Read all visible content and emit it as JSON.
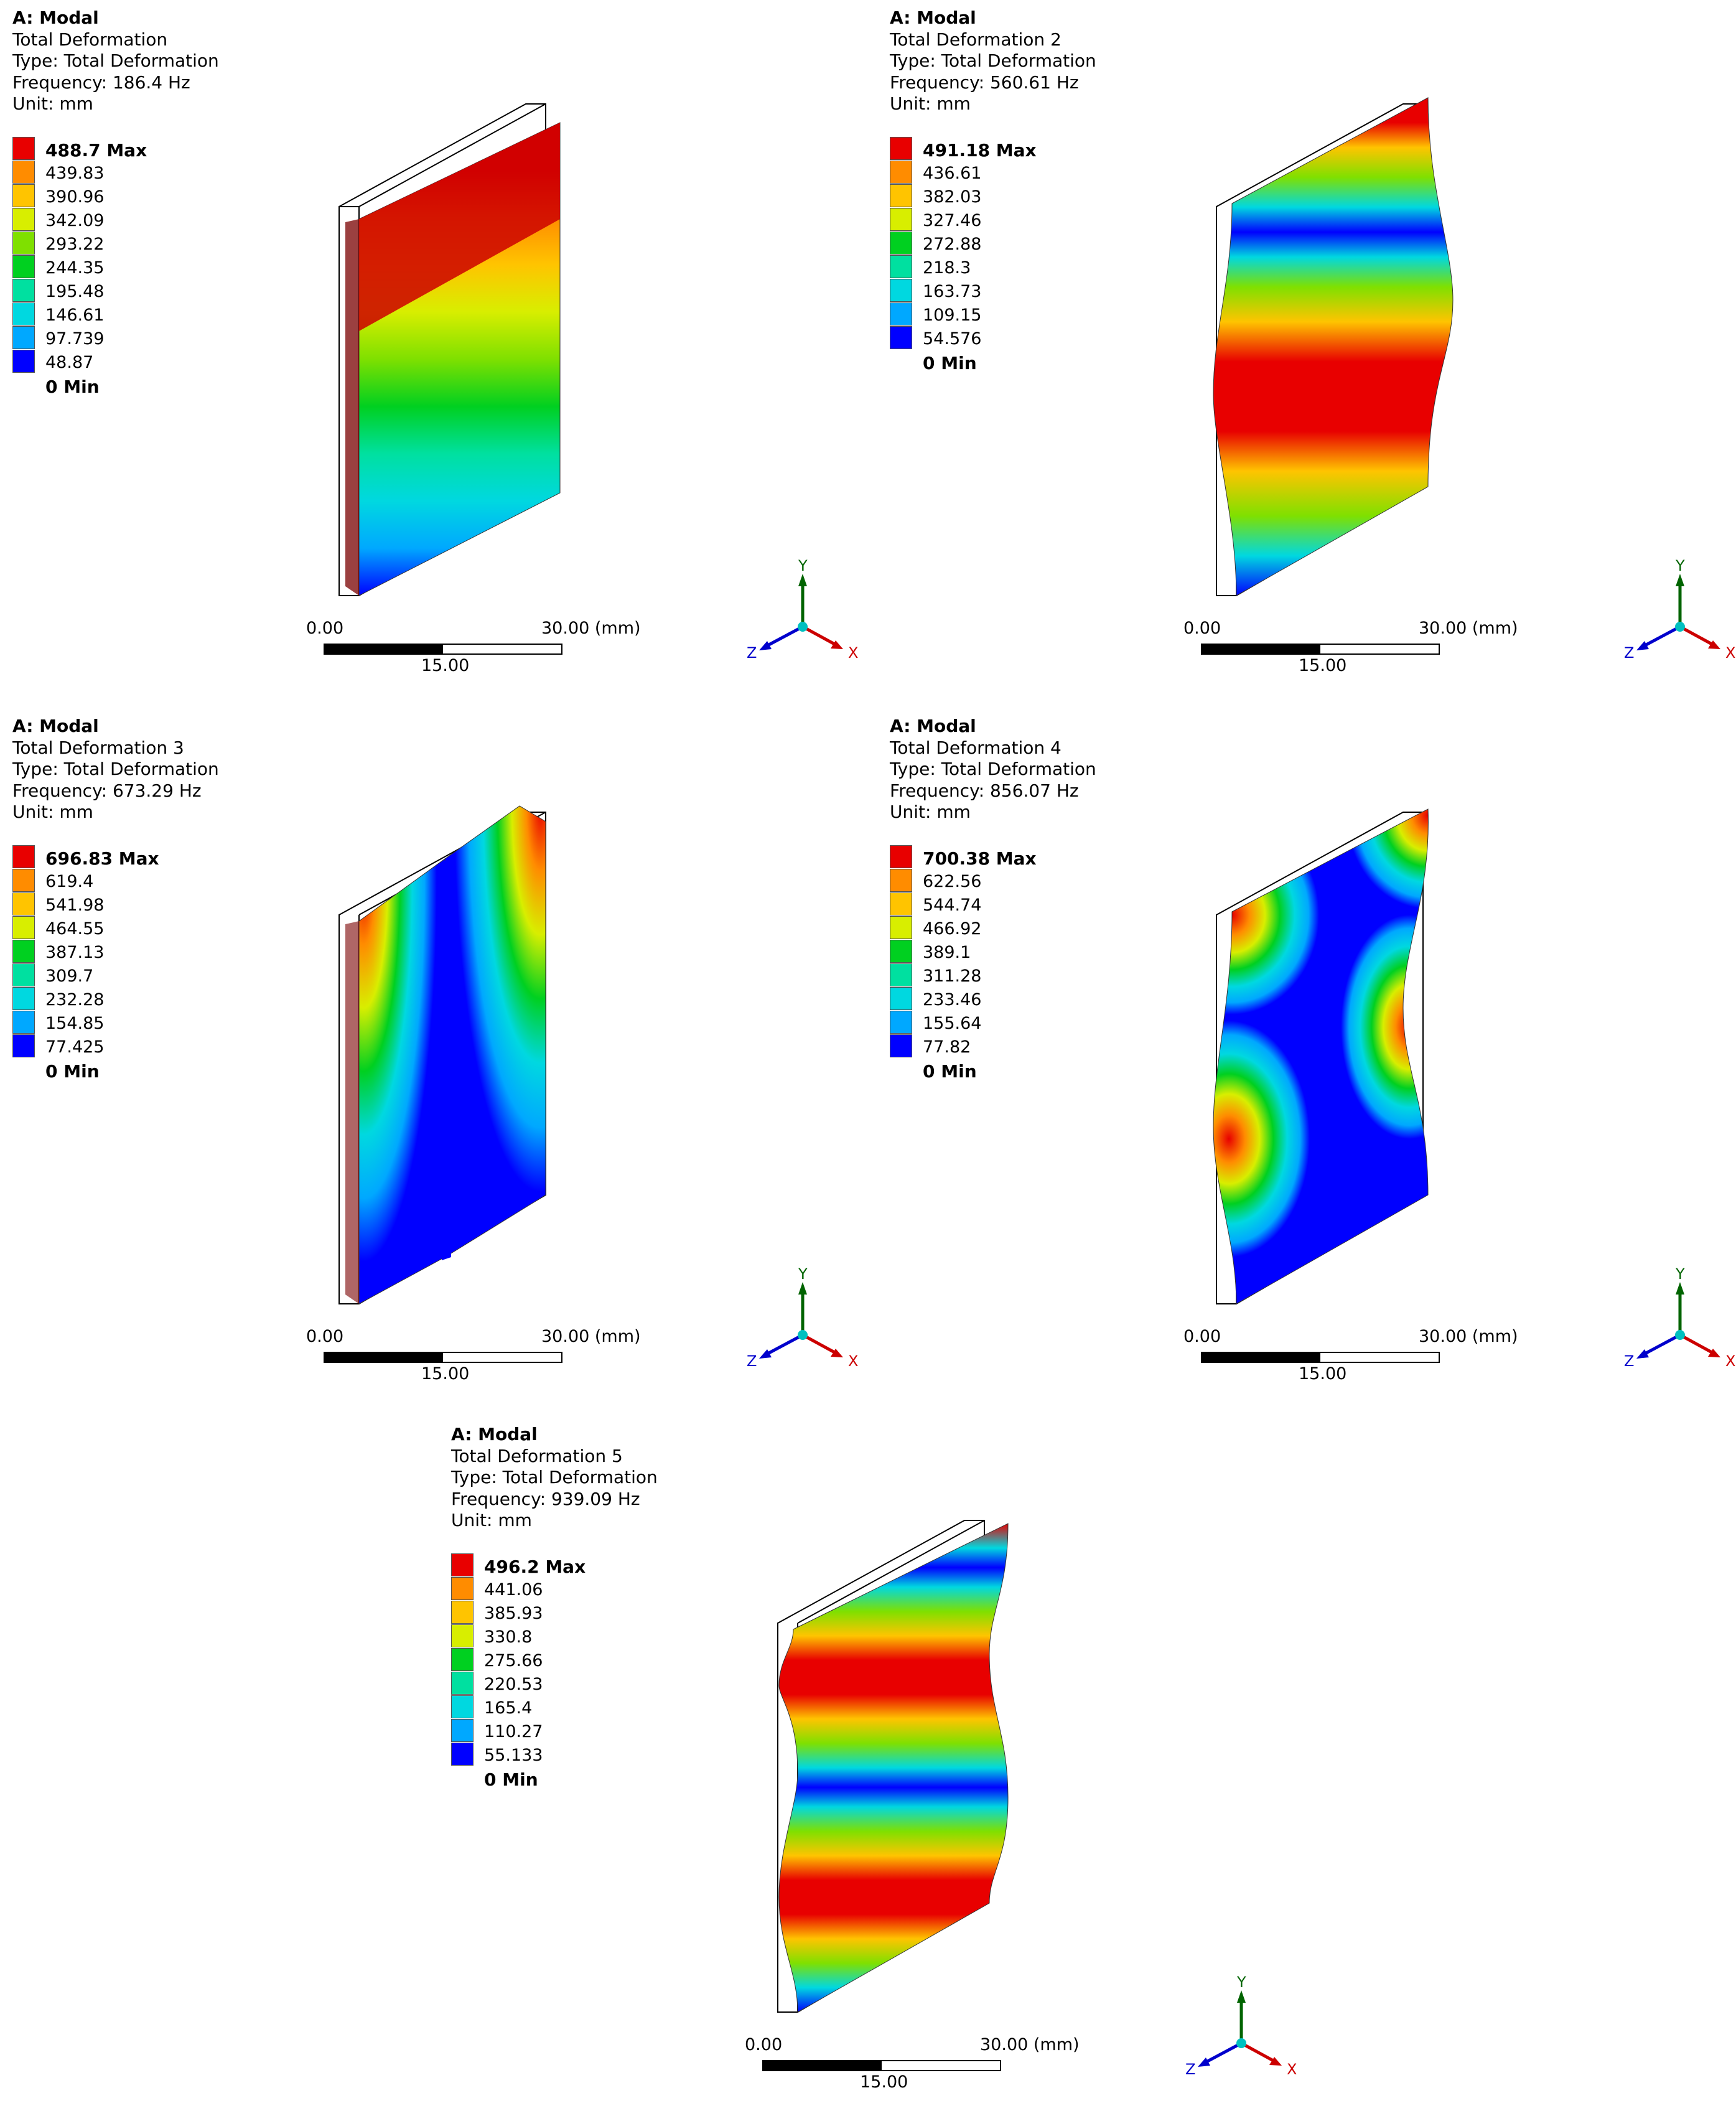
{
  "legend_colors": [
    "#e80000",
    "#ff8c00",
    "#ffc400",
    "#d8ee00",
    "#7fe000",
    "#00d020",
    "#00e0a0",
    "#00d8e0",
    "#00a8ff",
    "#0000ff"
  ],
  "panels": [
    {
      "title": "A: Modal",
      "result": "Total Deformation",
      "type": "Type: Total Deformation",
      "frequency": "Frequency: 186.4 Hz",
      "unit": "Unit: mm",
      "legend": [
        "488.7 Max",
        "439.83",
        "390.96",
        "342.09",
        "293.22",
        "244.35",
        "195.48",
        "146.61",
        "97.739",
        "48.87",
        "0 Min"
      ],
      "scale": {
        "start": "0.00",
        "end": "30.00 (mm)",
        "mid": "15.00"
      },
      "triad": {
        "y": "Y",
        "z": "Z",
        "x": "X"
      },
      "mode_shape": "cantilever-bending"
    },
    {
      "title": "A: Modal",
      "result": "Total Deformation 2",
      "type": "Type: Total Deformation",
      "frequency": "Frequency: 560.61 Hz",
      "unit": "Unit: mm",
      "legend": [
        "491.18 Max",
        "436.61",
        "382.03",
        "327.46",
        "272.88",
        "218.3",
        "163.73",
        "109.15",
        "54.576",
        "0 Min"
      ],
      "scale": {
        "start": "0.00",
        "end": "30.00 (mm)",
        "mid": "15.00"
      },
      "triad": {
        "y": "Y",
        "z": "Z",
        "x": "X"
      },
      "mode_shape": "second-bending"
    },
    {
      "title": "A: Modal",
      "result": "Total Deformation 3",
      "type": "Type: Total Deformation",
      "frequency": "Frequency: 673.29 Hz",
      "unit": "Unit: mm",
      "legend": [
        "696.83 Max",
        "619.4",
        "541.98",
        "464.55",
        "387.13",
        "309.7",
        "232.28",
        "154.85",
        "77.425",
        "0 Min"
      ],
      "scale": {
        "start": "0.00",
        "end": "30.00 (mm)",
        "mid": "15.00"
      },
      "triad": {
        "y": "Y",
        "z": "Z",
        "x": "X"
      },
      "mode_shape": "torsion"
    },
    {
      "title": "A: Modal",
      "result": "Total Deformation 4",
      "type": "Type: Total Deformation",
      "frequency": "Frequency: 856.07 Hz",
      "unit": "Unit: mm",
      "legend": [
        "700.38 Max",
        "622.56",
        "544.74",
        "466.92",
        "389.1",
        "311.28",
        "233.46",
        "155.64",
        "77.82",
        "0 Min"
      ],
      "scale": {
        "start": "0.00",
        "end": "30.00 (mm)",
        "mid": "15.00"
      },
      "triad": {
        "y": "Y",
        "z": "Z",
        "x": "X"
      },
      "mode_shape": "plate-mode"
    },
    {
      "title": "A: Modal",
      "result": "Total Deformation 5",
      "type": "Type: Total Deformation",
      "frequency": "Frequency: 939.09 Hz",
      "unit": "Unit: mm",
      "legend": [
        "496.2 Max",
        "441.06",
        "385.93",
        "330.8",
        "275.66",
        "220.53",
        "165.4",
        "110.27",
        "55.133",
        "0 Min"
      ],
      "scale": {
        "start": "0.00",
        "end": "30.00 (mm)",
        "mid": "15.00"
      },
      "triad": {
        "y": "Y",
        "z": "Z",
        "x": "X"
      },
      "mode_shape": "third-bending"
    }
  ]
}
